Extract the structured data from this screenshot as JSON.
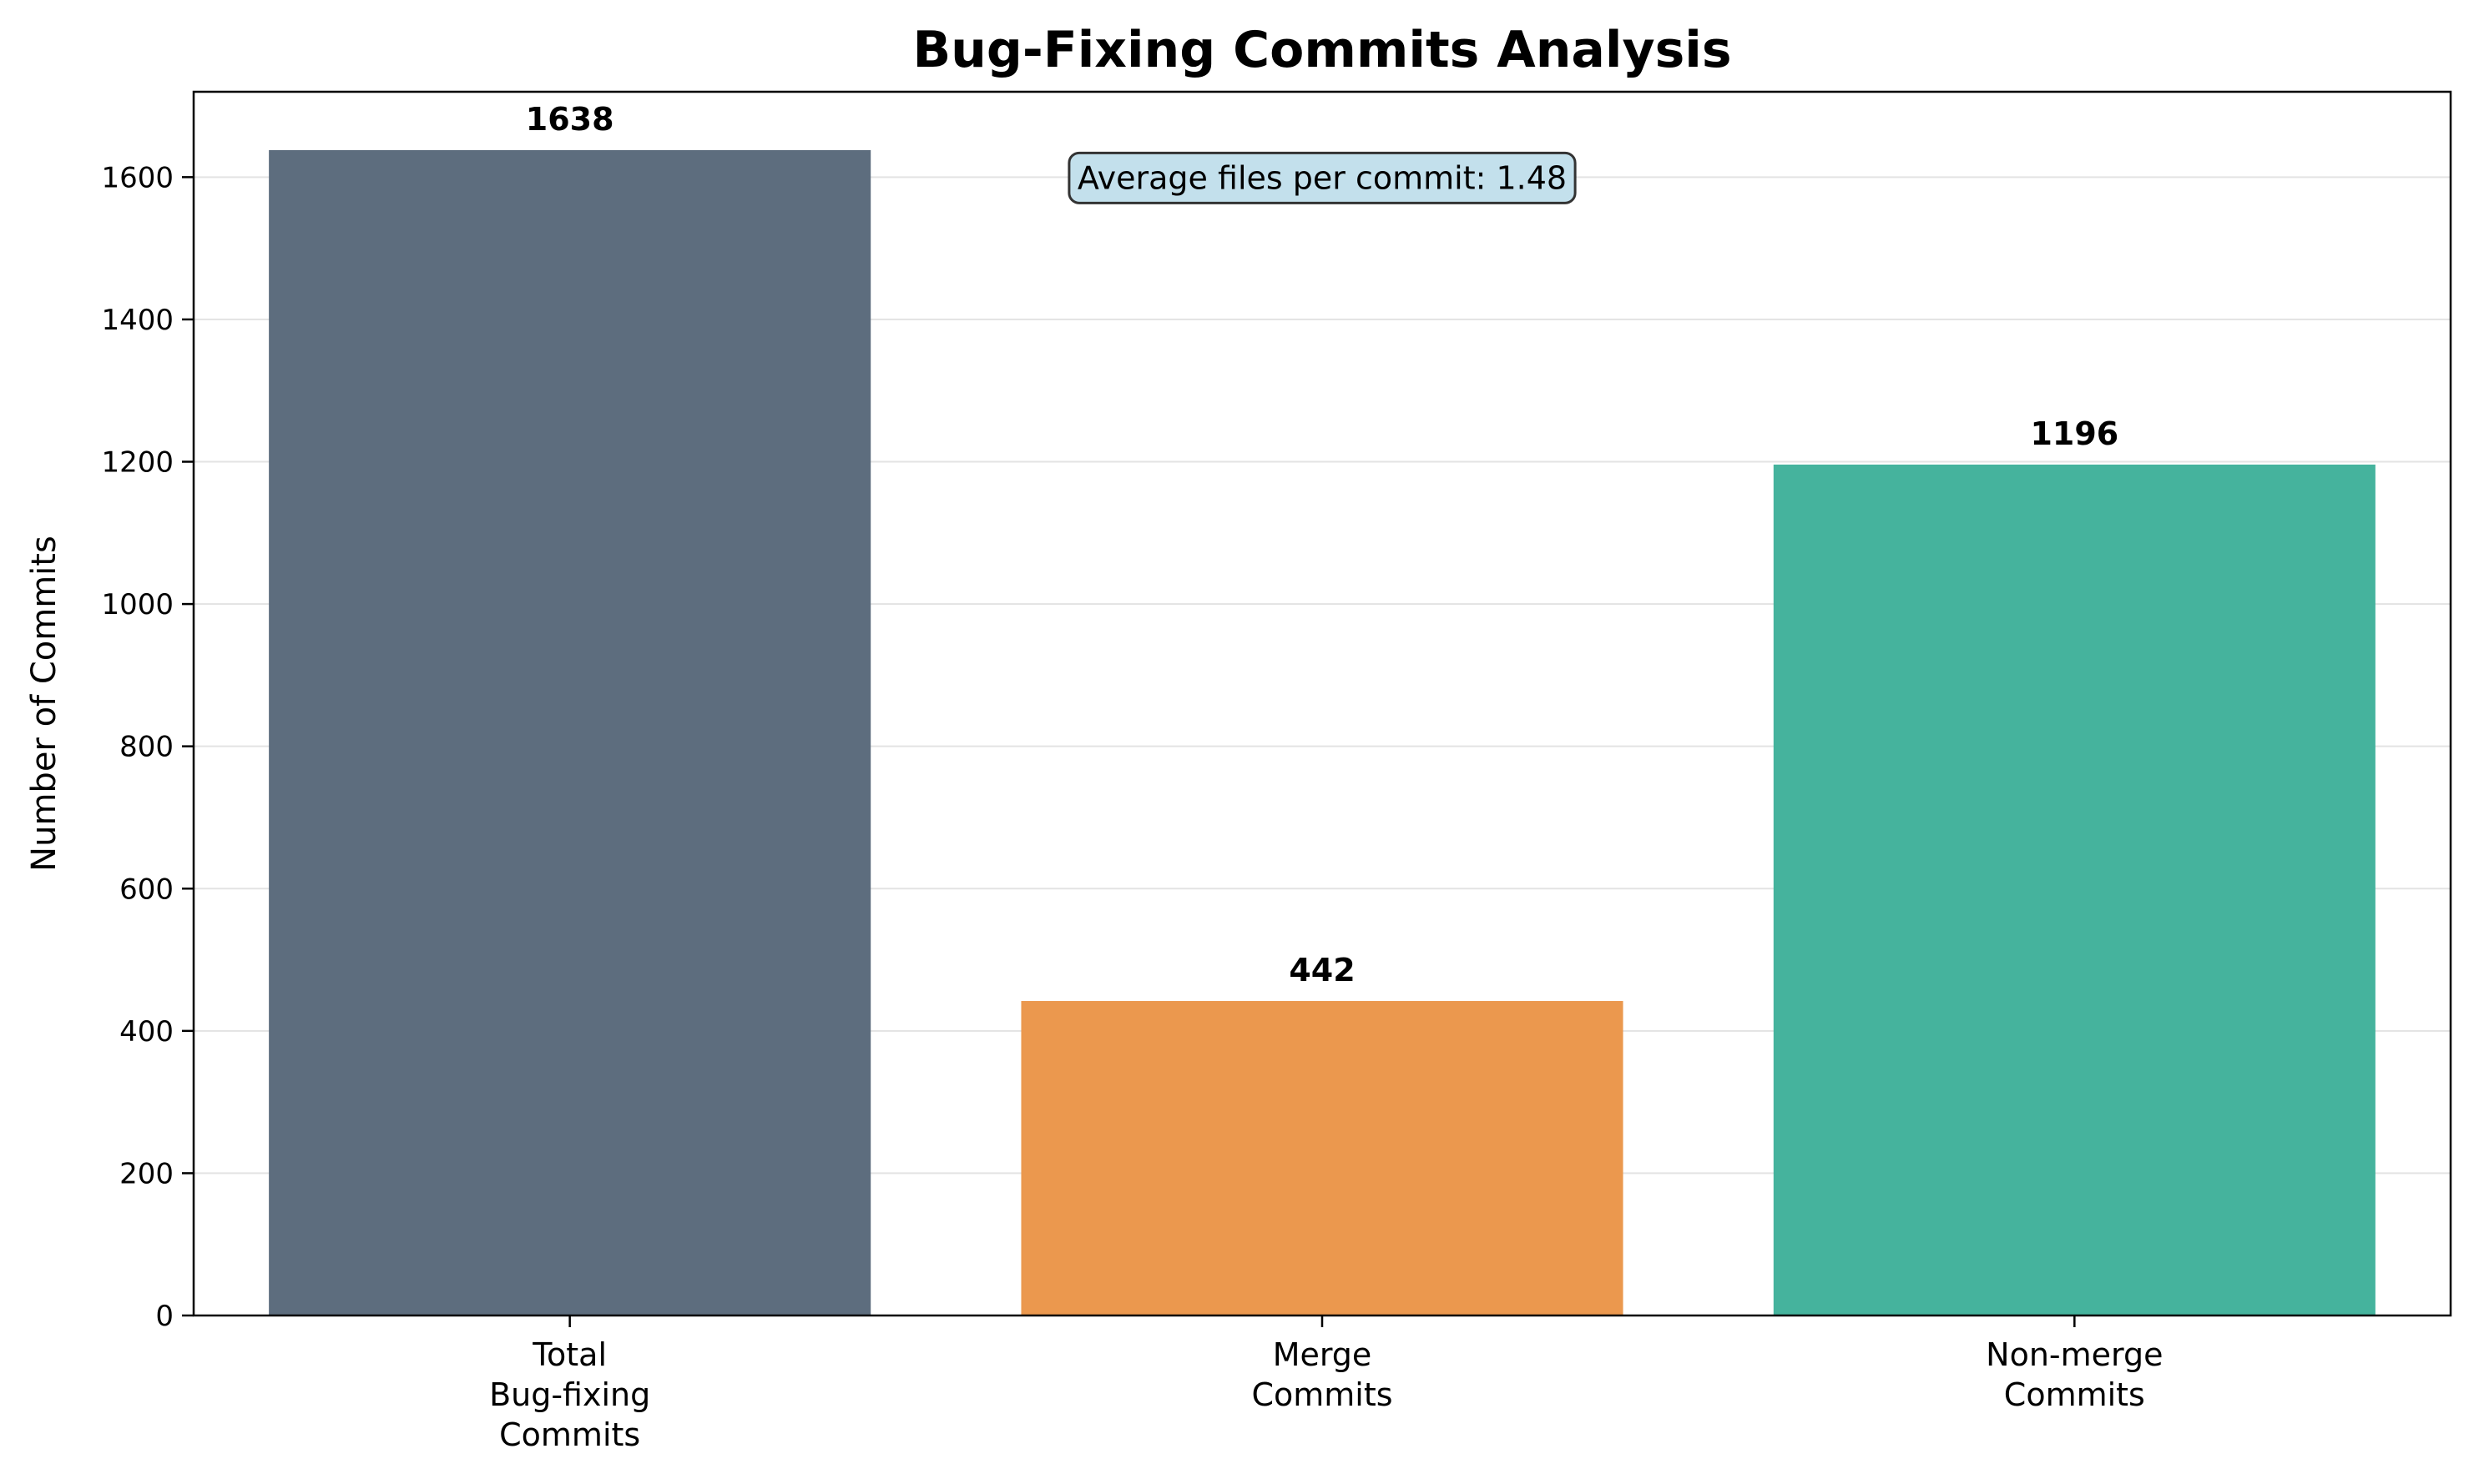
{
  "chart_data": {
    "type": "bar",
    "title": "Bug-Fixing Commits Analysis",
    "xlabel": "",
    "ylabel": "Number of Commits",
    "categories": [
      [
        "Total",
        "Bug-fixing",
        "Commits"
      ],
      [
        "Merge",
        "Commits"
      ],
      [
        "Non-merge",
        "Commits"
      ]
    ],
    "values": [
      1638,
      442,
      1196
    ],
    "value_labels": [
      "1638",
      "442",
      "1196"
    ],
    "colors": [
      "#5d6d7e",
      "#eb984e",
      "#45b39d"
    ],
    "ylim": [
      0,
      1720
    ],
    "yticks": [
      0,
      200,
      400,
      600,
      800,
      1000,
      1200,
      1400,
      1600
    ],
    "grid": true,
    "annotation": {
      "text": "Average files per commit: 1.48",
      "background": "#c3e0ec",
      "border": "#333333"
    },
    "legend": "none"
  }
}
